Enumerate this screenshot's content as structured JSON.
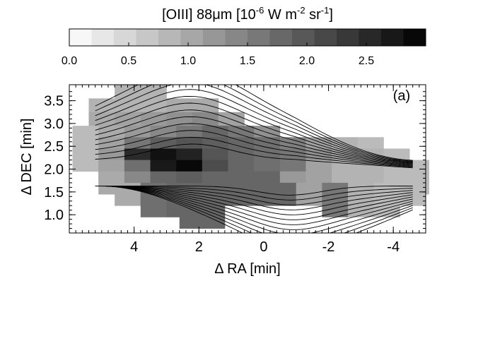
{
  "colorbar": {
    "title_main": "[OIII] 88μm [10",
    "title_exp1": "-6",
    "title_mid": " W m",
    "title_exp2": "-2",
    "title_mid2": " sr",
    "title_exp3": "-1",
    "title_end": "]",
    "range": [
      0.0,
      3.0
    ],
    "ticks": [
      0.0,
      0.5,
      1.0,
      1.5,
      2.0,
      2.5
    ],
    "tick_labels": [
      "0.0",
      "0.5",
      "1.0",
      "1.5",
      "2.0",
      "2.5"
    ]
  },
  "chart_data": {
    "type": "heatmap",
    "panel_label": "(a)",
    "xlabel": "Δ RA [min]",
    "ylabel": "Δ DEC [min]",
    "xlim": [
      6.0,
      -5.0
    ],
    "ylim": [
      0.6,
      3.85
    ],
    "xticks": [
      4,
      2,
      0,
      -2,
      -4
    ],
    "xtick_labels": [
      "4",
      "2",
      "0",
      "-2",
      "-4"
    ],
    "yticks": [
      1.0,
      1.5,
      2.0,
      2.5,
      3.0,
      3.5
    ],
    "ytick_labels": [
      "1.0",
      "1.5",
      "2.0",
      "2.5",
      "3.0",
      "3.5"
    ],
    "pixel_size": [
      0.8,
      0.5
    ],
    "colormap": {
      "low": "#ffffff",
      "high": "#000000"
    },
    "pixels": [
      {
        "ra": 4.2,
        "dec": 3.6,
        "value": 0.9
      },
      {
        "ra": 3.4,
        "dec": 3.6,
        "value": 0.9
      },
      {
        "ra": 5.0,
        "dec": 3.3,
        "value": 0.9
      },
      {
        "ra": 4.2,
        "dec": 3.3,
        "value": 0.9
      },
      {
        "ra": 3.4,
        "dec": 3.3,
        "value": 0.9
      },
      {
        "ra": 2.6,
        "dec": 3.3,
        "value": 1.0
      },
      {
        "ra": 1.8,
        "dec": 3.3,
        "value": 1.0
      },
      {
        "ra": 5.0,
        "dec": 3.0,
        "value": 1.0
      },
      {
        "ra": 4.2,
        "dec": 3.0,
        "value": 1.1
      },
      {
        "ra": 3.4,
        "dec": 3.0,
        "value": 1.2
      },
      {
        "ra": 2.6,
        "dec": 3.0,
        "value": 1.3
      },
      {
        "ra": 1.8,
        "dec": 3.0,
        "value": 1.4
      },
      {
        "ra": 1.0,
        "dec": 3.0,
        "value": 1.1
      },
      {
        "ra": 5.5,
        "dec": 2.7,
        "value": 0.8
      },
      {
        "ra": 4.7,
        "dec": 2.7,
        "value": 1.0
      },
      {
        "ra": 3.9,
        "dec": 2.7,
        "value": 1.2
      },
      {
        "ra": 3.1,
        "dec": 2.7,
        "value": 1.4
      },
      {
        "ra": 2.3,
        "dec": 2.7,
        "value": 1.6
      },
      {
        "ra": 1.5,
        "dec": 2.7,
        "value": 1.8
      },
      {
        "ra": 0.7,
        "dec": 2.7,
        "value": 1.6
      },
      {
        "ra": -0.1,
        "dec": 2.7,
        "value": 1.3
      },
      {
        "ra": 5.5,
        "dec": 2.45,
        "value": 0.8
      },
      {
        "ra": 4.7,
        "dec": 2.45,
        "value": 1.1
      },
      {
        "ra": 3.9,
        "dec": 2.45,
        "value": 1.6
      },
      {
        "ra": 3.1,
        "dec": 2.45,
        "value": 1.9
      },
      {
        "ra": 2.3,
        "dec": 2.45,
        "value": 2.0
      },
      {
        "ra": 1.5,
        "dec": 2.45,
        "value": 1.9
      },
      {
        "ra": 0.7,
        "dec": 2.45,
        "value": 1.8
      },
      {
        "ra": -0.1,
        "dec": 2.45,
        "value": 1.7
      },
      {
        "ra": -0.9,
        "dec": 2.45,
        "value": 1.5
      },
      {
        "ra": -1.7,
        "dec": 2.45,
        "value": 1.1
      },
      {
        "ra": -2.5,
        "dec": 2.45,
        "value": 0.9
      },
      {
        "ra": -3.3,
        "dec": 2.45,
        "value": 0.8
      },
      {
        "ra": 5.5,
        "dec": 2.2,
        "value": 0.8
      },
      {
        "ra": 4.7,
        "dec": 2.2,
        "value": 1.2
      },
      {
        "ra": 3.9,
        "dec": 2.2,
        "value": 2.5
      },
      {
        "ra": 3.1,
        "dec": 2.2,
        "value": 2.8
      },
      {
        "ra": 2.3,
        "dec": 2.2,
        "value": 2.6
      },
      {
        "ra": 1.5,
        "dec": 2.2,
        "value": 2.0
      },
      {
        "ra": 0.7,
        "dec": 2.2,
        "value": 1.8
      },
      {
        "ra": -0.1,
        "dec": 2.2,
        "value": 1.7
      },
      {
        "ra": -0.9,
        "dec": 2.2,
        "value": 1.6
      },
      {
        "ra": -1.7,
        "dec": 2.2,
        "value": 1.3
      },
      {
        "ra": -2.5,
        "dec": 2.2,
        "value": 1.1
      },
      {
        "ra": -3.3,
        "dec": 2.2,
        "value": 0.9
      },
      {
        "ra": -4.1,
        "dec": 2.2,
        "value": 0.8
      },
      {
        "ra": 4.7,
        "dec": 1.95,
        "value": 1.1
      },
      {
        "ra": 3.9,
        "dec": 1.95,
        "value": 1.7
      },
      {
        "ra": 3.1,
        "dec": 1.95,
        "value": 2.7
      },
      {
        "ra": 2.3,
        "dec": 1.95,
        "value": 2.9
      },
      {
        "ra": 1.5,
        "dec": 1.95,
        "value": 2.1
      },
      {
        "ra": 0.7,
        "dec": 1.95,
        "value": 1.8
      },
      {
        "ra": -0.1,
        "dec": 1.95,
        "value": 1.7
      },
      {
        "ra": -0.9,
        "dec": 1.95,
        "value": 1.6
      },
      {
        "ra": -1.7,
        "dec": 1.95,
        "value": 1.1
      },
      {
        "ra": -2.5,
        "dec": 1.95,
        "value": 0.9
      },
      {
        "ra": -3.3,
        "dec": 1.95,
        "value": 0.9
      },
      {
        "ra": -4.1,
        "dec": 1.95,
        "value": 0.8
      },
      {
        "ra": -4.7,
        "dec": 1.95,
        "value": 0.8
      },
      {
        "ra": 4.7,
        "dec": 1.7,
        "value": 1.0
      },
      {
        "ra": 3.9,
        "dec": 1.7,
        "value": 1.4
      },
      {
        "ra": 3.1,
        "dec": 1.7,
        "value": 1.8
      },
      {
        "ra": 2.3,
        "dec": 1.7,
        "value": 1.9
      },
      {
        "ra": 1.5,
        "dec": 1.7,
        "value": 1.8
      },
      {
        "ra": 0.7,
        "dec": 1.7,
        "value": 1.8
      },
      {
        "ra": -0.1,
        "dec": 1.7,
        "value": 1.8
      },
      {
        "ra": -0.9,
        "dec": 1.7,
        "value": 1.2
      },
      {
        "ra": -1.7,
        "dec": 1.7,
        "value": 1.1
      },
      {
        "ra": -2.5,
        "dec": 1.7,
        "value": 0.9
      },
      {
        "ra": -3.3,
        "dec": 1.7,
        "value": 0.9
      },
      {
        "ra": -4.1,
        "dec": 1.7,
        "value": 0.8
      },
      {
        "ra": -4.7,
        "dec": 1.7,
        "value": 0.8
      },
      {
        "ra": 4.2,
        "dec": 1.45,
        "value": 1.0
      },
      {
        "ra": 3.4,
        "dec": 1.45,
        "value": 1.7
      },
      {
        "ra": 2.6,
        "dec": 1.45,
        "value": 1.8
      },
      {
        "ra": 1.8,
        "dec": 1.45,
        "value": 1.8
      },
      {
        "ra": 1.0,
        "dec": 1.45,
        "value": 1.8
      },
      {
        "ra": 0.2,
        "dec": 1.45,
        "value": 1.8
      },
      {
        "ra": -0.6,
        "dec": 1.45,
        "value": 1.8
      },
      {
        "ra": -1.4,
        "dec": 1.45,
        "value": 1.1
      },
      {
        "ra": -2.2,
        "dec": 1.45,
        "value": 1.6
      },
      {
        "ra": -3.0,
        "dec": 1.45,
        "value": 0.9
      },
      {
        "ra": -3.8,
        "dec": 1.45,
        "value": 0.8
      },
      {
        "ra": -4.6,
        "dec": 1.45,
        "value": 0.8
      },
      {
        "ra": 3.4,
        "dec": 1.2,
        "value": 1.7
      },
      {
        "ra": 2.6,
        "dec": 1.2,
        "value": 1.8
      },
      {
        "ra": 1.8,
        "dec": 1.2,
        "value": 1.8
      },
      {
        "ra": -2.2,
        "dec": 1.2,
        "value": 1.6
      },
      {
        "ra": -3.0,
        "dec": 1.2,
        "value": 0.9
      },
      {
        "ra": -3.8,
        "dec": 1.2,
        "value": 0.8
      },
      {
        "ra": 2.2,
        "dec": 0.95,
        "value": 1.8
      },
      {
        "ra": 1.6,
        "dec": 0.95,
        "value": 1.8
      }
    ],
    "contour_levels": 12
  }
}
